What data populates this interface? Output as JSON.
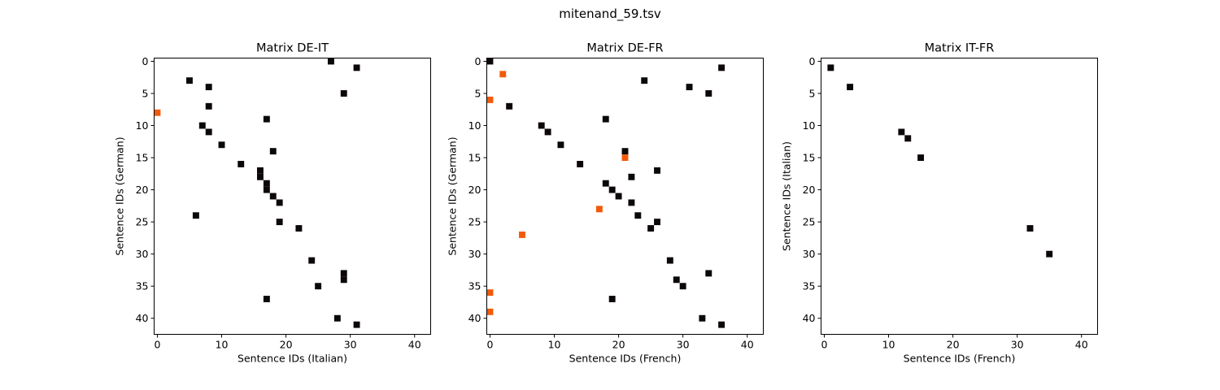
{
  "figure": {
    "title": "mitenand_59.tsv"
  },
  "colors": {
    "black": "#0c0808",
    "orange": "#f15a0a"
  },
  "chart_data": [
    {
      "type": "scatter",
      "title": "Matrix DE-IT",
      "xlabel": "Sentence IDs (Italian)",
      "ylabel": "Sentence IDs (German)",
      "xlim": [
        -0.5,
        42.5
      ],
      "ylim": [
        42.5,
        -0.5
      ],
      "xticks": [
        0,
        10,
        20,
        30,
        40
      ],
      "yticks": [
        0,
        5,
        10,
        15,
        20,
        25,
        30,
        35,
        40
      ],
      "grid": false,
      "series": [
        {
          "color": "black",
          "points": [
            [
              27,
              0
            ],
            [
              31,
              1
            ],
            [
              5,
              3
            ],
            [
              8,
              4
            ],
            [
              29,
              5
            ],
            [
              8,
              7
            ],
            [
              17,
              9
            ],
            [
              7,
              10
            ],
            [
              8,
              11
            ],
            [
              10,
              13
            ],
            [
              18,
              14
            ],
            [
              13,
              16
            ],
            [
              16,
              17
            ],
            [
              16,
              18
            ],
            [
              17,
              19
            ],
            [
              17,
              20
            ],
            [
              18,
              21
            ],
            [
              19,
              22
            ],
            [
              6,
              24
            ],
            [
              19,
              25
            ],
            [
              22,
              26
            ],
            [
              24,
              31
            ],
            [
              29,
              33
            ],
            [
              29,
              34
            ],
            [
              25,
              35
            ],
            [
              17,
              37
            ],
            [
              28,
              40
            ],
            [
              31,
              41
            ]
          ]
        },
        {
          "color": "orange",
          "points": [
            [
              0,
              8
            ]
          ]
        }
      ]
    },
    {
      "type": "scatter",
      "title": "Matrix DE-FR",
      "xlabel": "Sentence IDs (French)",
      "ylabel": "Sentence IDs (German)",
      "xlim": [
        -0.5,
        42.5
      ],
      "ylim": [
        42.5,
        -0.5
      ],
      "xticks": [
        0,
        10,
        20,
        30,
        40
      ],
      "yticks": [
        0,
        5,
        10,
        15,
        20,
        25,
        30,
        35,
        40
      ],
      "grid": false,
      "series": [
        {
          "color": "black",
          "points": [
            [
              0,
              0
            ],
            [
              36,
              1
            ],
            [
              24,
              3
            ],
            [
              31,
              4
            ],
            [
              34,
              5
            ],
            [
              3,
              7
            ],
            [
              18,
              9
            ],
            [
              8,
              10
            ],
            [
              9,
              11
            ],
            [
              11,
              13
            ],
            [
              21,
              14
            ],
            [
              14,
              16
            ],
            [
              26,
              17
            ],
            [
              22,
              18
            ],
            [
              18,
              19
            ],
            [
              19,
              20
            ],
            [
              20,
              21
            ],
            [
              22,
              22
            ],
            [
              23,
              24
            ],
            [
              26,
              25
            ],
            [
              25,
              26
            ],
            [
              28,
              31
            ],
            [
              34,
              33
            ],
            [
              29,
              34
            ],
            [
              30,
              35
            ],
            [
              19,
              37
            ],
            [
              33,
              40
            ],
            [
              36,
              41
            ]
          ]
        },
        {
          "color": "orange",
          "points": [
            [
              2,
              2
            ],
            [
              0,
              6
            ],
            [
              21,
              15
            ],
            [
              17,
              23
            ],
            [
              5,
              27
            ],
            [
              0,
              36
            ],
            [
              0,
              39
            ]
          ]
        }
      ]
    },
    {
      "type": "scatter",
      "title": "Matrix IT-FR",
      "xlabel": "Sentence IDs (French)",
      "ylabel": "Sentence IDs (Italian)",
      "xlim": [
        -0.5,
        42.5
      ],
      "ylim": [
        42.5,
        -0.5
      ],
      "xticks": [
        0,
        10,
        20,
        30,
        40
      ],
      "yticks": [
        0,
        5,
        10,
        15,
        20,
        25,
        30,
        35,
        40
      ],
      "grid": false,
      "series": [
        {
          "color": "black",
          "points": [
            [
              1,
              1
            ],
            [
              4,
              4
            ],
            [
              12,
              11
            ],
            [
              13,
              12
            ],
            [
              15,
              15
            ],
            [
              32,
              26
            ],
            [
              35,
              30
            ]
          ]
        }
      ]
    }
  ]
}
